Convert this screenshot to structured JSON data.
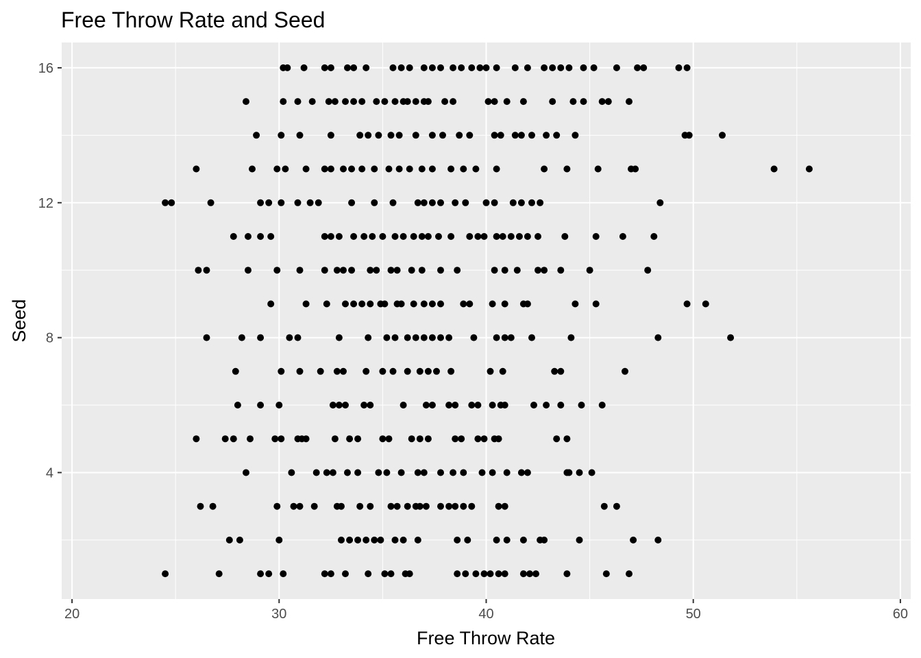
{
  "chart_data": {
    "type": "scatter",
    "title": "Free Throw Rate and Seed",
    "xlabel": "Free Throw Rate",
    "ylabel": "Seed",
    "xlim": [
      19.5,
      60.5
    ],
    "ylim": [
      0.25,
      16.75
    ],
    "xticks": [
      20,
      30,
      40,
      50,
      60
    ],
    "yticks": [
      4,
      8,
      12,
      16
    ],
    "grid": true,
    "colors": {
      "panel": "#ebebeb",
      "grid": "#ffffff",
      "point": "#000000",
      "tick_text": "#4d4d4d"
    },
    "points": [
      [
        30.2,
        16
      ],
      [
        30.4,
        16
      ],
      [
        31.2,
        16
      ],
      [
        32.2,
        16
      ],
      [
        32.5,
        16
      ],
      [
        33.3,
        16
      ],
      [
        33.6,
        16
      ],
      [
        34.2,
        16
      ],
      [
        35.5,
        16
      ],
      [
        35.9,
        16
      ],
      [
        36.3,
        16
      ],
      [
        37.0,
        16
      ],
      [
        37.4,
        16
      ],
      [
        37.8,
        16
      ],
      [
        38.4,
        16
      ],
      [
        38.8,
        16
      ],
      [
        39.3,
        16
      ],
      [
        39.7,
        16
      ],
      [
        40.0,
        16
      ],
      [
        40.5,
        16
      ],
      [
        41.4,
        16
      ],
      [
        42.0,
        16
      ],
      [
        42.8,
        16
      ],
      [
        43.2,
        16
      ],
      [
        43.6,
        16
      ],
      [
        44.0,
        16
      ],
      [
        44.7,
        16
      ],
      [
        45.2,
        16
      ],
      [
        46.3,
        16
      ],
      [
        47.3,
        16
      ],
      [
        47.6,
        16
      ],
      [
        49.3,
        16
      ],
      [
        49.7,
        16
      ],
      [
        28.4,
        15
      ],
      [
        30.2,
        15
      ],
      [
        30.9,
        15
      ],
      [
        31.6,
        15
      ],
      [
        32.4,
        15
      ],
      [
        32.7,
        15
      ],
      [
        33.2,
        15
      ],
      [
        33.6,
        15
      ],
      [
        34.0,
        15
      ],
      [
        34.7,
        15
      ],
      [
        35.1,
        15
      ],
      [
        35.6,
        15
      ],
      [
        36.0,
        15
      ],
      [
        36.2,
        15
      ],
      [
        36.6,
        15
      ],
      [
        37.0,
        15
      ],
      [
        37.2,
        15
      ],
      [
        38.0,
        15
      ],
      [
        38.4,
        15
      ],
      [
        40.1,
        15
      ],
      [
        40.4,
        15
      ],
      [
        41.0,
        15
      ],
      [
        41.8,
        15
      ],
      [
        43.2,
        15
      ],
      [
        44.2,
        15
      ],
      [
        44.7,
        15
      ],
      [
        45.6,
        15
      ],
      [
        45.9,
        15
      ],
      [
        46.9,
        15
      ],
      [
        28.9,
        14
      ],
      [
        30.1,
        14
      ],
      [
        31.0,
        14
      ],
      [
        32.5,
        14
      ],
      [
        33.9,
        14
      ],
      [
        34.3,
        14
      ],
      [
        34.8,
        14
      ],
      [
        35.4,
        14
      ],
      [
        35.8,
        14
      ],
      [
        36.6,
        14
      ],
      [
        37.4,
        14
      ],
      [
        37.9,
        14
      ],
      [
        38.7,
        14
      ],
      [
        39.2,
        14
      ],
      [
        40.4,
        14
      ],
      [
        40.7,
        14
      ],
      [
        41.4,
        14
      ],
      [
        41.7,
        14
      ],
      [
        42.2,
        14
      ],
      [
        42.9,
        14
      ],
      [
        43.4,
        14
      ],
      [
        44.3,
        14
      ],
      [
        49.6,
        14
      ],
      [
        49.8,
        14
      ],
      [
        51.4,
        14
      ],
      [
        26.0,
        13
      ],
      [
        28.7,
        13
      ],
      [
        29.9,
        13
      ],
      [
        30.3,
        13
      ],
      [
        31.3,
        13
      ],
      [
        32.2,
        13
      ],
      [
        32.5,
        13
      ],
      [
        33.1,
        13
      ],
      [
        33.5,
        13
      ],
      [
        34.0,
        13
      ],
      [
        34.6,
        13
      ],
      [
        35.3,
        13
      ],
      [
        35.8,
        13
      ],
      [
        36.3,
        13
      ],
      [
        36.9,
        13
      ],
      [
        37.4,
        13
      ],
      [
        38.3,
        13
      ],
      [
        38.9,
        13
      ],
      [
        39.5,
        13
      ],
      [
        40.5,
        13
      ],
      [
        42.8,
        13
      ],
      [
        43.9,
        13
      ],
      [
        45.4,
        13
      ],
      [
        47.0,
        13
      ],
      [
        47.2,
        13
      ],
      [
        53.9,
        13
      ],
      [
        55.6,
        13
      ],
      [
        24.5,
        12
      ],
      [
        24.8,
        12
      ],
      [
        26.7,
        12
      ],
      [
        29.1,
        12
      ],
      [
        29.5,
        12
      ],
      [
        30.1,
        12
      ],
      [
        30.9,
        12
      ],
      [
        31.5,
        12
      ],
      [
        31.9,
        12
      ],
      [
        33.5,
        12
      ],
      [
        34.6,
        12
      ],
      [
        35.5,
        12
      ],
      [
        36.7,
        12
      ],
      [
        37.0,
        12
      ],
      [
        37.4,
        12
      ],
      [
        37.8,
        12
      ],
      [
        38.5,
        12
      ],
      [
        39.0,
        12
      ],
      [
        40.0,
        12
      ],
      [
        40.4,
        12
      ],
      [
        41.3,
        12
      ],
      [
        41.7,
        12
      ],
      [
        42.2,
        12
      ],
      [
        42.6,
        12
      ],
      [
        48.4,
        12
      ],
      [
        27.8,
        11
      ],
      [
        28.5,
        11
      ],
      [
        29.1,
        11
      ],
      [
        29.6,
        11
      ],
      [
        32.2,
        11
      ],
      [
        32.5,
        11
      ],
      [
        32.9,
        11
      ],
      [
        33.6,
        11
      ],
      [
        34.1,
        11
      ],
      [
        34.5,
        11
      ],
      [
        35.0,
        11
      ],
      [
        35.6,
        11
      ],
      [
        36.0,
        11
      ],
      [
        36.5,
        11
      ],
      [
        36.9,
        11
      ],
      [
        37.2,
        11
      ],
      [
        37.7,
        11
      ],
      [
        38.3,
        11
      ],
      [
        39.2,
        11
      ],
      [
        39.6,
        11
      ],
      [
        39.9,
        11
      ],
      [
        40.5,
        11
      ],
      [
        40.8,
        11
      ],
      [
        41.2,
        11
      ],
      [
        41.6,
        11
      ],
      [
        42.0,
        11
      ],
      [
        42.5,
        11
      ],
      [
        43.8,
        11
      ],
      [
        45.3,
        11
      ],
      [
        46.6,
        11
      ],
      [
        48.1,
        11
      ],
      [
        26.1,
        10
      ],
      [
        26.5,
        10
      ],
      [
        28.5,
        10
      ],
      [
        29.9,
        10
      ],
      [
        31.0,
        10
      ],
      [
        32.2,
        10
      ],
      [
        32.8,
        10
      ],
      [
        33.1,
        10
      ],
      [
        33.5,
        10
      ],
      [
        34.4,
        10
      ],
      [
        34.7,
        10
      ],
      [
        35.4,
        10
      ],
      [
        35.7,
        10
      ],
      [
        36.4,
        10
      ],
      [
        36.9,
        10
      ],
      [
        37.8,
        10
      ],
      [
        38.6,
        10
      ],
      [
        40.4,
        10
      ],
      [
        40.9,
        10
      ],
      [
        41.5,
        10
      ],
      [
        42.5,
        10
      ],
      [
        42.8,
        10
      ],
      [
        43.6,
        10
      ],
      [
        45.0,
        10
      ],
      [
        47.8,
        10
      ],
      [
        29.6,
        9
      ],
      [
        31.3,
        9
      ],
      [
        32.3,
        9
      ],
      [
        33.2,
        9
      ],
      [
        33.6,
        9
      ],
      [
        34.0,
        9
      ],
      [
        34.4,
        9
      ],
      [
        34.9,
        9
      ],
      [
        35.1,
        9
      ],
      [
        35.7,
        9
      ],
      [
        35.9,
        9
      ],
      [
        36.5,
        9
      ],
      [
        37.0,
        9
      ],
      [
        37.4,
        9
      ],
      [
        37.8,
        9
      ],
      [
        38.9,
        9
      ],
      [
        39.2,
        9
      ],
      [
        40.3,
        9
      ],
      [
        40.9,
        9
      ],
      [
        41.8,
        9
      ],
      [
        42.0,
        9
      ],
      [
        44.3,
        9
      ],
      [
        45.3,
        9
      ],
      [
        49.7,
        9
      ],
      [
        50.6,
        9
      ],
      [
        26.5,
        8
      ],
      [
        28.2,
        8
      ],
      [
        29.1,
        8
      ],
      [
        30.5,
        8
      ],
      [
        30.9,
        8
      ],
      [
        32.9,
        8
      ],
      [
        34.3,
        8
      ],
      [
        35.2,
        8
      ],
      [
        35.6,
        8
      ],
      [
        36.2,
        8
      ],
      [
        36.6,
        8
      ],
      [
        37.0,
        8
      ],
      [
        37.4,
        8
      ],
      [
        37.8,
        8
      ],
      [
        38.2,
        8
      ],
      [
        39.4,
        8
      ],
      [
        40.5,
        8
      ],
      [
        40.9,
        8
      ],
      [
        41.2,
        8
      ],
      [
        42.2,
        8
      ],
      [
        44.1,
        8
      ],
      [
        48.3,
        8
      ],
      [
        51.8,
        8
      ],
      [
        27.9,
        7
      ],
      [
        30.1,
        7
      ],
      [
        31.0,
        7
      ],
      [
        32.0,
        7
      ],
      [
        32.8,
        7
      ],
      [
        33.1,
        7
      ],
      [
        34.2,
        7
      ],
      [
        35.0,
        7
      ],
      [
        35.5,
        7
      ],
      [
        36.2,
        7
      ],
      [
        36.8,
        7
      ],
      [
        37.2,
        7
      ],
      [
        37.6,
        7
      ],
      [
        38.3,
        7
      ],
      [
        40.2,
        7
      ],
      [
        40.8,
        7
      ],
      [
        43.3,
        7
      ],
      [
        43.6,
        7
      ],
      [
        46.7,
        7
      ],
      [
        28.0,
        6
      ],
      [
        29.1,
        6
      ],
      [
        30.0,
        6
      ],
      [
        32.6,
        6
      ],
      [
        32.9,
        6
      ],
      [
        33.2,
        6
      ],
      [
        34.1,
        6
      ],
      [
        34.4,
        6
      ],
      [
        36.0,
        6
      ],
      [
        37.1,
        6
      ],
      [
        37.4,
        6
      ],
      [
        38.2,
        6
      ],
      [
        38.5,
        6
      ],
      [
        39.3,
        6
      ],
      [
        39.6,
        6
      ],
      [
        40.3,
        6
      ],
      [
        40.7,
        6
      ],
      [
        40.9,
        6
      ],
      [
        42.3,
        6
      ],
      [
        42.9,
        6
      ],
      [
        43.6,
        6
      ],
      [
        44.6,
        6
      ],
      [
        45.6,
        6
      ],
      [
        26.0,
        5
      ],
      [
        27.4,
        5
      ],
      [
        27.8,
        5
      ],
      [
        28.6,
        5
      ],
      [
        29.8,
        5
      ],
      [
        30.1,
        5
      ],
      [
        30.9,
        5
      ],
      [
        31.1,
        5
      ],
      [
        31.3,
        5
      ],
      [
        32.7,
        5
      ],
      [
        33.4,
        5
      ],
      [
        33.8,
        5
      ],
      [
        35.0,
        5
      ],
      [
        35.3,
        5
      ],
      [
        36.4,
        5
      ],
      [
        36.8,
        5
      ],
      [
        37.2,
        5
      ],
      [
        38.5,
        5
      ],
      [
        38.8,
        5
      ],
      [
        39.6,
        5
      ],
      [
        39.9,
        5
      ],
      [
        40.4,
        5
      ],
      [
        40.6,
        5
      ],
      [
        43.4,
        5
      ],
      [
        43.9,
        5
      ],
      [
        28.4,
        4
      ],
      [
        30.6,
        4
      ],
      [
        31.8,
        4
      ],
      [
        32.3,
        4
      ],
      [
        32.6,
        4
      ],
      [
        33.3,
        4
      ],
      [
        33.8,
        4
      ],
      [
        34.8,
        4
      ],
      [
        35.2,
        4
      ],
      [
        35.9,
        4
      ],
      [
        36.7,
        4
      ],
      [
        37.0,
        4
      ],
      [
        37.8,
        4
      ],
      [
        38.4,
        4
      ],
      [
        38.9,
        4
      ],
      [
        39.8,
        4
      ],
      [
        40.3,
        4
      ],
      [
        41.0,
        4
      ],
      [
        41.7,
        4
      ],
      [
        42.0,
        4
      ],
      [
        43.9,
        4
      ],
      [
        44.0,
        4
      ],
      [
        44.5,
        4
      ],
      [
        45.1,
        4
      ],
      [
        26.2,
        3
      ],
      [
        26.8,
        3
      ],
      [
        29.9,
        3
      ],
      [
        30.7,
        3
      ],
      [
        31.0,
        3
      ],
      [
        31.7,
        3
      ],
      [
        32.8,
        3
      ],
      [
        33.0,
        3
      ],
      [
        33.9,
        3
      ],
      [
        34.4,
        3
      ],
      [
        35.4,
        3
      ],
      [
        35.7,
        3
      ],
      [
        36.2,
        3
      ],
      [
        36.6,
        3
      ],
      [
        36.8,
        3
      ],
      [
        37.1,
        3
      ],
      [
        37.8,
        3
      ],
      [
        38.2,
        3
      ],
      [
        38.5,
        3
      ],
      [
        38.9,
        3
      ],
      [
        39.3,
        3
      ],
      [
        40.6,
        3
      ],
      [
        40.9,
        3
      ],
      [
        45.7,
        3
      ],
      [
        46.3,
        3
      ],
      [
        27.6,
        2
      ],
      [
        28.1,
        2
      ],
      [
        30.0,
        2
      ],
      [
        33.0,
        2
      ],
      [
        33.4,
        2
      ],
      [
        33.8,
        2
      ],
      [
        34.2,
        2
      ],
      [
        34.6,
        2
      ],
      [
        34.9,
        2
      ],
      [
        35.6,
        2
      ],
      [
        36.0,
        2
      ],
      [
        36.7,
        2
      ],
      [
        38.6,
        2
      ],
      [
        39.1,
        2
      ],
      [
        40.5,
        2
      ],
      [
        41.0,
        2
      ],
      [
        41.8,
        2
      ],
      [
        42.6,
        2
      ],
      [
        42.8,
        2
      ],
      [
        44.5,
        2
      ],
      [
        47.1,
        2
      ],
      [
        48.3,
        2
      ],
      [
        24.5,
        1
      ],
      [
        27.1,
        1
      ],
      [
        29.1,
        1
      ],
      [
        29.5,
        1
      ],
      [
        30.2,
        1
      ],
      [
        32.2,
        1
      ],
      [
        32.5,
        1
      ],
      [
        33.2,
        1
      ],
      [
        34.3,
        1
      ],
      [
        35.1,
        1
      ],
      [
        35.4,
        1
      ],
      [
        36.1,
        1
      ],
      [
        36.3,
        1
      ],
      [
        38.6,
        1
      ],
      [
        39.0,
        1
      ],
      [
        39.5,
        1
      ],
      [
        39.9,
        1
      ],
      [
        40.2,
        1
      ],
      [
        40.6,
        1
      ],
      [
        40.9,
        1
      ],
      [
        41.8,
        1
      ],
      [
        42.1,
        1
      ],
      [
        42.4,
        1
      ],
      [
        43.9,
        1
      ],
      [
        45.8,
        1
      ],
      [
        46.9,
        1
      ]
    ]
  }
}
